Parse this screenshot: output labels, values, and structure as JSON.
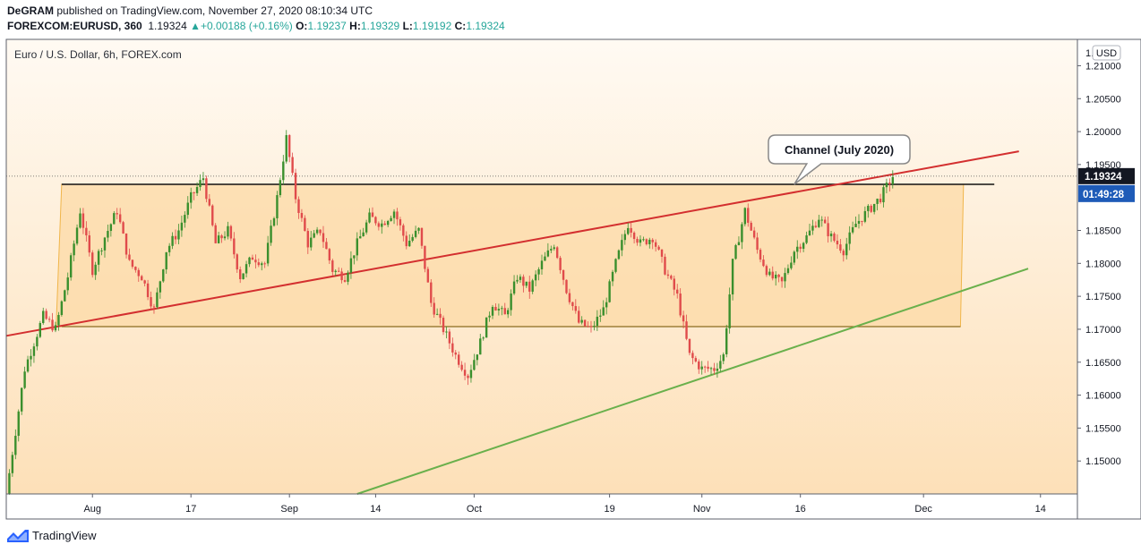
{
  "header": {
    "author": "DeGRAM",
    "published_text": "published on TradingView.com, November 27, 2020 08:10:34 UTC",
    "symbol": "FOREXCOM:EURUSD, 360",
    "last": "1.19324",
    "change": "+0.00188 (+0.16%)",
    "o_label": "O:",
    "o_value": "1.19237",
    "h_label": "H:",
    "h_value": "1.19329",
    "l_label": "L:",
    "l_value": "1.19192",
    "c_label": "C:",
    "c_value": "1.19324"
  },
  "footer": {
    "brand": "TradingView"
  },
  "colors": {
    "bull": "#26a69a",
    "bull_candle": "#3a8f2d",
    "bear_candle": "#e04b4b",
    "red_line": "#d32f2f",
    "green_line": "#6ab04c",
    "zone_fill": "#fcd9a6",
    "zone_border": "#f0b54a",
    "price_tag": "#131722",
    "countdown_tag": "#1e5bb8"
  },
  "chart_data": {
    "type": "candlestick",
    "title": "Euro / U.S. Dollar, 6h, FOREX.com",
    "currency": "USD",
    "current_price": 1.19324,
    "current_price_label": "1.19324",
    "countdown_label": "01:49:28",
    "ylim": [
      1.145,
      1.214
    ],
    "y_ticks": [
      1.15,
      1.155,
      1.16,
      1.165,
      1.17,
      1.175,
      1.18,
      1.185,
      1.195,
      1.2,
      1.205,
      1.21
    ],
    "y_tick_labels": [
      "1.15000",
      "1.15500",
      "1.16000",
      "1.16500",
      "1.17000",
      "1.17500",
      "1.18000",
      "1.18500",
      "1.19500",
      "1.20000",
      "1.20500",
      "1.21000"
    ],
    "top_tick_label": "1.",
    "x_range_days": [
      0,
      174
    ],
    "x_ticks": [
      {
        "day": 14,
        "label": "Aug"
      },
      {
        "day": 30,
        "label": "17"
      },
      {
        "day": 46,
        "label": "Sep"
      },
      {
        "day": 60,
        "label": "14"
      },
      {
        "day": 76,
        "label": "Oct"
      },
      {
        "day": 98,
        "label": "19"
      },
      {
        "day": 113,
        "label": "Nov"
      },
      {
        "day": 129,
        "label": "16"
      },
      {
        "day": 149,
        "label": "Dec"
      },
      {
        "day": 168,
        "label": "14"
      }
    ],
    "price_path": [
      [
        0.0,
        1.145
      ],
      [
        3,
        1.164
      ],
      [
        6,
        1.172
      ],
      [
        8,
        1.17
      ],
      [
        10,
        1.178
      ],
      [
        12,
        1.188
      ],
      [
        14,
        1.179
      ],
      [
        16,
        1.184
      ],
      [
        18,
        1.188
      ],
      [
        20,
        1.18
      ],
      [
        22,
        1.178
      ],
      [
        24,
        1.173
      ],
      [
        26,
        1.182
      ],
      [
        28,
        1.185
      ],
      [
        30,
        1.19
      ],
      [
        32,
        1.193
      ],
      [
        34,
        1.183
      ],
      [
        36,
        1.185
      ],
      [
        38,
        1.178
      ],
      [
        40,
        1.181
      ],
      [
        42,
        1.18
      ],
      [
        44,
        1.19
      ],
      [
        45.5,
        1.199
      ],
      [
        47,
        1.19
      ],
      [
        49,
        1.183
      ],
      [
        51,
        1.185
      ],
      [
        53,
        1.179
      ],
      [
        55,
        1.178
      ],
      [
        57,
        1.183
      ],
      [
        59,
        1.187
      ],
      [
        61,
        1.186
      ],
      [
        63,
        1.188
      ],
      [
        65,
        1.183
      ],
      [
        67,
        1.185
      ],
      [
        69,
        1.174
      ],
      [
        71,
        1.17
      ],
      [
        73,
        1.166
      ],
      [
        75,
        1.163
      ],
      [
        77,
        1.168
      ],
      [
        79,
        1.174
      ],
      [
        81,
        1.172
      ],
      [
        83,
        1.178
      ],
      [
        85,
        1.176
      ],
      [
        87,
        1.18
      ],
      [
        89,
        1.183
      ],
      [
        91,
        1.176
      ],
      [
        93,
        1.171
      ],
      [
        95,
        1.17
      ],
      [
        97,
        1.173
      ],
      [
        99,
        1.18
      ],
      [
        101,
        1.186
      ],
      [
        103,
        1.183
      ],
      [
        105,
        1.184
      ],
      [
        107,
        1.179
      ],
      [
        109,
        1.175
      ],
      [
        111,
        1.166
      ],
      [
        113,
        1.164
      ],
      [
        115,
        1.164
      ],
      [
        116.5,
        1.166
      ],
      [
        118,
        1.18
      ],
      [
        120,
        1.188
      ],
      [
        122,
        1.182
      ],
      [
        124,
        1.178
      ],
      [
        126,
        1.177
      ],
      [
        128,
        1.182
      ],
      [
        130,
        1.184
      ],
      [
        132,
        1.187
      ],
      [
        134,
        1.184
      ],
      [
        136,
        1.182
      ],
      [
        138,
        1.186
      ],
      [
        140,
        1.188
      ],
      [
        142,
        1.19
      ],
      [
        144,
        1.1932
      ]
    ],
    "zone": {
      "start_day": 9.0,
      "end_day": 155.5,
      "top": 1.192,
      "bottom": 1.1704
    },
    "horizontal_line": {
      "price": 1.192,
      "start_day": 9.0,
      "end_day": 160.5
    },
    "red_trendline": {
      "start": [
        0.0,
        1.169
      ],
      "end": [
        164.5,
        1.197
      ]
    },
    "green_trendline": {
      "start": [
        57.0,
        1.145
      ],
      "end": [
        166.0,
        1.1792
      ]
    },
    "annotation": {
      "text": "Channel (July 2020)",
      "pointer": [
        128.0,
        1.192
      ]
    }
  }
}
